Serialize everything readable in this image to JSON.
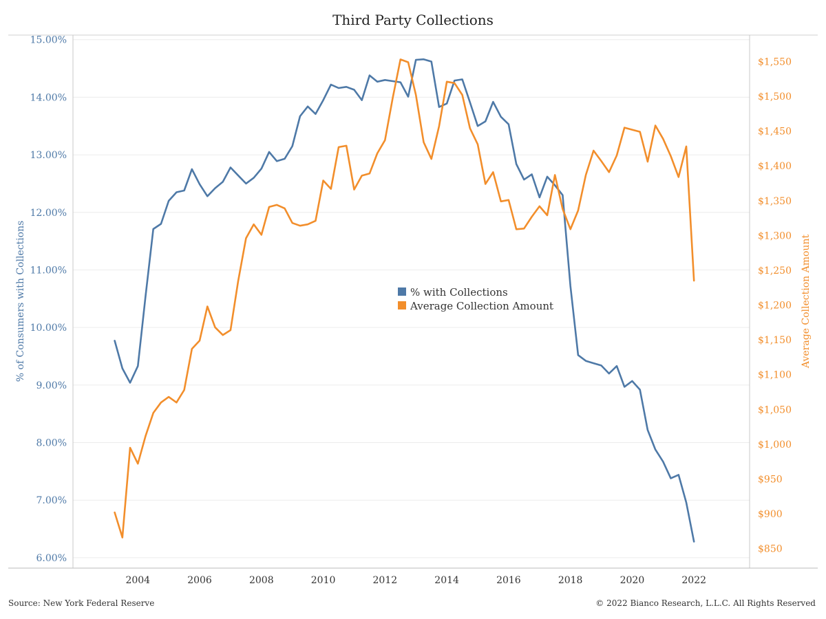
{
  "chart_data": {
    "type": "line",
    "title": "Third Party Collections",
    "ylabel_left": "% of Consumers with Collections",
    "ylabel_right": "Average Collection Amount",
    "x_ticks": [
      "2004",
      "2006",
      "2008",
      "2010",
      "2012",
      "2014",
      "2016",
      "2018",
      "2020",
      "2022"
    ],
    "x_range": [
      2001.9,
      2023.8
    ],
    "y_left_range": [
      5.82,
      15.08
    ],
    "y_left_ticks": [
      6,
      7,
      8,
      9,
      10,
      11,
      12,
      13,
      14,
      15
    ],
    "y_left_tick_labels": [
      "6.00%",
      "7.00%",
      "8.00%",
      "9.00%",
      "10.00%",
      "11.00%",
      "12.00%",
      "13.00%",
      "14.00%",
      "15.00%"
    ],
    "y_right_range": [
      822,
      1588
    ],
    "y_right_ticks": [
      850,
      900,
      950,
      1000,
      1050,
      1100,
      1150,
      1200,
      1250,
      1300,
      1350,
      1400,
      1450,
      1500,
      1550
    ],
    "y_right_tick_labels": [
      "$850",
      "$900",
      "$950",
      "$1,000",
      "$1,050",
      "$1,100",
      "$1,150",
      "$1,200",
      "$1,250",
      "$1,300",
      "$1,350",
      "$1,400",
      "$1,450",
      "$1,500",
      "$1,550"
    ],
    "grid": true,
    "legend_position": "center",
    "series": [
      {
        "name": "% with Collections",
        "axis": "left",
        "color": "#4e79a7",
        "x": [
          2003.25,
          2003.5,
          2003.75,
          2004.0,
          2004.25,
          2004.5,
          2004.75,
          2005.0,
          2005.25,
          2005.5,
          2005.75,
          2006.0,
          2006.25,
          2006.5,
          2006.75,
          2007.0,
          2007.25,
          2007.5,
          2007.75,
          2008.0,
          2008.25,
          2008.5,
          2008.75,
          2009.0,
          2009.25,
          2009.5,
          2009.75,
          2010.0,
          2010.25,
          2010.5,
          2010.75,
          2011.0,
          2011.25,
          2011.5,
          2011.75,
          2012.0,
          2012.25,
          2012.5,
          2012.75,
          2013.0,
          2013.25,
          2013.5,
          2013.75,
          2014.0,
          2014.25,
          2014.5,
          2014.75,
          2015.0,
          2015.25,
          2015.5,
          2015.75,
          2016.0,
          2016.25,
          2016.5,
          2016.75,
          2017.0,
          2017.25,
          2017.5,
          2017.75,
          2018.0,
          2018.25,
          2018.5,
          2018.75,
          2019.0,
          2019.25,
          2019.5,
          2019.75,
          2020.0,
          2020.25,
          2020.5,
          2020.75,
          2021.0,
          2021.25,
          2021.5,
          2021.75,
          2022.0
        ],
        "values": [
          9.77,
          9.29,
          9.04,
          9.33,
          10.55,
          11.71,
          11.8,
          12.2,
          12.35,
          12.38,
          12.75,
          12.49,
          12.28,
          12.42,
          12.53,
          12.78,
          12.64,
          12.5,
          12.6,
          12.76,
          13.05,
          12.89,
          12.93,
          13.15,
          13.67,
          13.84,
          13.71,
          13.95,
          14.22,
          14.16,
          14.18,
          14.13,
          13.95,
          14.38,
          14.27,
          14.3,
          14.28,
          14.26,
          14.01,
          14.65,
          14.66,
          14.62,
          13.83,
          13.89,
          14.29,
          14.31,
          13.91,
          13.5,
          13.58,
          13.92,
          13.66,
          13.53,
          12.84,
          12.57,
          12.66,
          12.26,
          12.62,
          12.47,
          12.3,
          10.72,
          9.52,
          9.42,
          9.38,
          9.34,
          9.2,
          9.33,
          8.97,
          9.07,
          8.92,
          8.22,
          7.88,
          7.67,
          7.38,
          7.44,
          6.96,
          6.28
        ]
      },
      {
        "name": "Average Collection Amount",
        "axis": "right",
        "color": "#f28e2b",
        "x": [
          2003.25,
          2003.5,
          2003.75,
          2004.0,
          2004.25,
          2004.5,
          2004.75,
          2005.0,
          2005.25,
          2005.5,
          2005.75,
          2006.0,
          2006.25,
          2006.5,
          2006.75,
          2007.0,
          2007.25,
          2007.5,
          2007.75,
          2008.0,
          2008.25,
          2008.5,
          2008.75,
          2009.0,
          2009.25,
          2009.5,
          2009.75,
          2010.0,
          2010.25,
          2010.5,
          2010.75,
          2011.0,
          2011.25,
          2011.5,
          2011.75,
          2012.0,
          2012.25,
          2012.5,
          2012.75,
          2013.0,
          2013.25,
          2013.5,
          2013.75,
          2014.0,
          2014.25,
          2014.5,
          2014.75,
          2015.0,
          2015.25,
          2015.5,
          2015.75,
          2016.0,
          2016.25,
          2016.5,
          2016.75,
          2017.0,
          2017.25,
          2017.5,
          2017.75,
          2018.0,
          2018.25,
          2018.5,
          2018.75,
          2019.0,
          2019.25,
          2019.5,
          2019.75,
          2020.0,
          2020.25,
          2020.5,
          2020.75,
          2021.0,
          2021.25,
          2021.5,
          2021.75,
          2022.0
        ],
        "values": [
          902,
          866,
          995,
          972,
          1012,
          1045,
          1060,
          1068,
          1060,
          1078,
          1137,
          1149,
          1198,
          1168,
          1157,
          1164,
          1235,
          1296,
          1316,
          1301,
          1341,
          1344,
          1339,
          1318,
          1314,
          1316,
          1321,
          1379,
          1367,
          1427,
          1429,
          1366,
          1386,
          1389,
          1418,
          1437,
          1498,
          1553,
          1549,
          1502,
          1434,
          1410,
          1457,
          1521,
          1519,
          1502,
          1454,
          1431,
          1374,
          1391,
          1349,
          1351,
          1309,
          1310,
          1327,
          1342,
          1329,
          1387,
          1338,
          1309,
          1336,
          1387,
          1422,
          1407,
          1391,
          1415,
          1455,
          1452,
          1449,
          1406,
          1458,
          1439,
          1414,
          1384,
          1428,
          1235
        ]
      }
    ],
    "footer_left": "Source: New York Federal Reserve",
    "footer_right": "© 2022 Bianco Research, L.L.C. All Rights Reserved"
  }
}
